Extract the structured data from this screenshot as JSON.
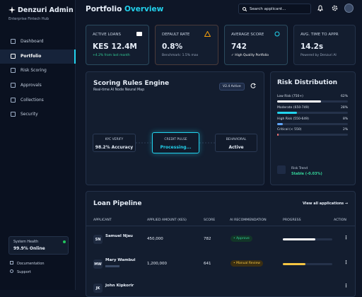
{
  "sidebar": {
    "brand": "Denzuri Admin",
    "tagline": "Enterprise Fintech Hub",
    "nav": [
      "Dashboard",
      "Portfolio",
      "Risk Scoring",
      "Approvals",
      "Collections",
      "Security"
    ],
    "health": {
      "label": "System Health",
      "status": "99.9% Online"
    },
    "links": [
      "Documentation",
      "Support"
    ]
  },
  "header": {
    "title": "Portfolio",
    "title_accent": "Overview",
    "search": "Search applicant..."
  },
  "kpis": [
    {
      "label": "ACTIVE LOANS",
      "value": "KES 12.4M",
      "note": "+4.2% from last month"
    },
    {
      "label": "DEFAULT RATE",
      "value": "0.8%",
      "note": "Benchmark: 1.5% max"
    },
    {
      "label": "AVERAGE SCORE",
      "value": "742",
      "note": "High Quality Portfolio"
    },
    {
      "label": "AVG. TIME TO APPR",
      "value": "14.2s",
      "note": "Powered by Denzuri AI"
    }
  ],
  "engine": {
    "title": "Scoring Rules Engine",
    "subtitle": "Real-time AI Node Neural Map",
    "badge": "V2.4 Active",
    "nodes": [
      {
        "label": "KYC VERIFY",
        "status": "98.2% Accuracy"
      },
      {
        "label": "CREDIT PULSE",
        "status": "Processing..."
      },
      {
        "label": "BEHAVIORAL",
        "status": "Active"
      }
    ]
  },
  "risk": {
    "title": "Risk Distribution",
    "items": [
      {
        "label": "Low Risk (750+)",
        "value": 62,
        "value_label": "62%"
      },
      {
        "label": "Moderate (650-749)",
        "value": 28,
        "value_label": "28%"
      },
      {
        "label": "High Risk (550-649)",
        "value": 8,
        "value_label": "8%"
      },
      {
        "label": "Critical (< 550)",
        "value": 2,
        "value_label": "2%"
      }
    ],
    "trend_label": "Risk Trend",
    "trend": "Stable (-0.03%)"
  },
  "pipeline": {
    "title": "Loan Pipeline",
    "link": "View all applications",
    "columns": [
      "APPLICANT",
      "APPLIED AMOUNT (KES)",
      "SCORE",
      "AI RECOMMENDATION",
      "PROGRESS",
      "ACTION"
    ],
    "rows": [
      {
        "initials": "SN",
        "name": "Samuel Njau",
        "amount": "450,000",
        "score": 782,
        "recommendation": "Approve",
        "progress": 65
      },
      {
        "initials": "MW",
        "name": "Mary Wambui",
        "amount": "1,200,000",
        "score": 641,
        "recommendation": "Manual Review",
        "progress": 45
      },
      {
        "initials": "JK",
        "name": "John Kipkorir"
      }
    ]
  }
}
